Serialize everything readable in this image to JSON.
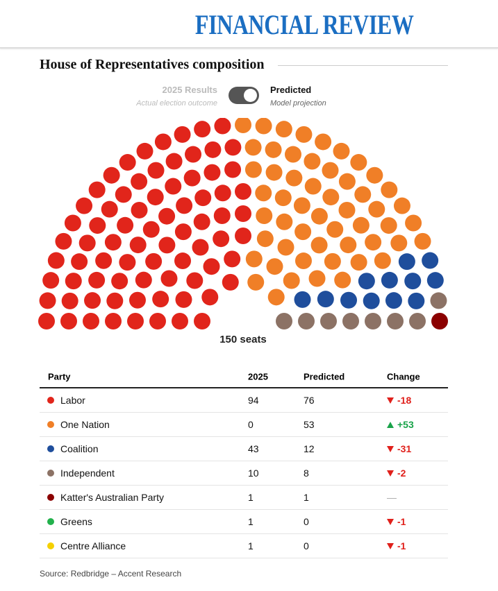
{
  "header": {
    "masthead": "FINANCIAL REVIEW",
    "title": "House of Representatives composition"
  },
  "chart_data": {
    "type": "parliament",
    "categories": [
      "Labor",
      "One Nation",
      "Coalition",
      "Independent",
      "Katter's Australian Party",
      "Greens",
      "Centre Alliance"
    ],
    "colors": [
      "#e1251b",
      "#f07f27",
      "#1f4e9c",
      "#8c7265",
      "#8b0000",
      "#22b14c",
      "#f5d000"
    ],
    "series": [
      {
        "name": "2025 Results",
        "description": "Actual election outcome",
        "values": [
          94,
          0,
          43,
          10,
          1,
          1,
          1
        ]
      },
      {
        "name": "Predicted",
        "description": "Model projection",
        "values": [
          76,
          53,
          12,
          8,
          1,
          0,
          0
        ]
      }
    ],
    "selected": 1,
    "total_label": "150 seats",
    "change": [
      "-18",
      "+53",
      "-31",
      "-2",
      "—",
      "-1",
      "-1"
    ]
  },
  "table": {
    "headers": [
      "Party",
      "2025",
      "Predicted",
      "Change"
    ]
  },
  "source": "Source: Redbridge – Accent Research"
}
